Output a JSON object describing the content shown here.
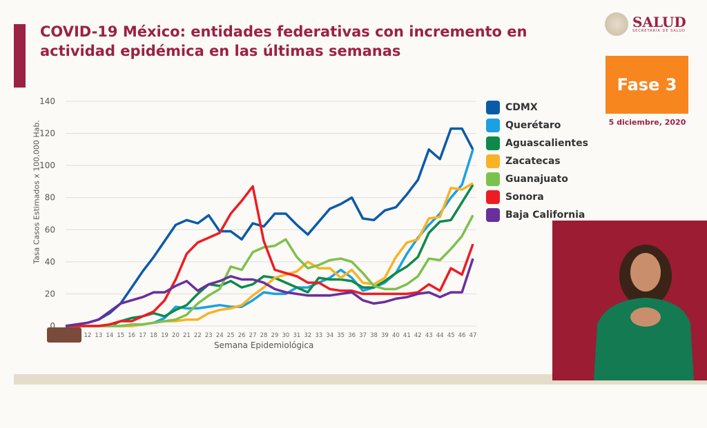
{
  "header": {
    "title": "COVID-19 México: entidades federativas con incremento en actividad epidémica en las últimas semanas",
    "logo_text": "SALUD",
    "logo_sub": "SECRETARÍA DE SALUD",
    "phase": "Fase 3",
    "date": "5 diciembre, 2020"
  },
  "chart_data": {
    "type": "line",
    "title": "",
    "xlabel": "Semana Epidemiológica",
    "ylabel": "Tasa Casos Estimados x 100,000 Hab.",
    "ylim": [
      0,
      140
    ],
    "yticks": [
      "0",
      "20",
      "40",
      "60",
      "80",
      "100",
      "120",
      "140"
    ],
    "grid": true,
    "legend": "right",
    "x": [
      10,
      11,
      12,
      13,
      14,
      15,
      16,
      17,
      18,
      19,
      20,
      21,
      22,
      23,
      24,
      25,
      26,
      27,
      28,
      29,
      30,
      31,
      32,
      33,
      34,
      35,
      36,
      37,
      38,
      39,
      40,
      41,
      42,
      43,
      44,
      45,
      46,
      47
    ],
    "xtick_labels": [
      "12",
      "13",
      "14",
      "15",
      "16",
      "17",
      "18",
      "19",
      "20",
      "21",
      "22",
      "23",
      "24",
      "25",
      "26",
      "27",
      "28",
      "29",
      "30",
      "31",
      "32",
      "33",
      "34",
      "35",
      "36",
      "37",
      "38",
      "39",
      "40",
      "41",
      "42",
      "43",
      "44",
      "45",
      "46",
      "47"
    ],
    "series": [
      {
        "name": "CDMX",
        "color": "#0b5aa8",
        "values": [
          0,
          1,
          2,
          4,
          8,
          14,
          24,
          34,
          43,
          53,
          63,
          66,
          64,
          69,
          59,
          59,
          54,
          64,
          62,
          70,
          70,
          63,
          57,
          65,
          73,
          76,
          80,
          67,
          66,
          72,
          74,
          82,
          91,
          110,
          104,
          123,
          123,
          110
        ]
      },
      {
        "name": "Querétaro",
        "color": "#1ba1e2",
        "values": [
          0,
          0,
          0,
          0,
          0,
          0,
          0,
          1,
          2,
          5,
          12,
          11,
          11,
          12,
          13,
          12,
          12,
          16,
          21,
          20,
          20,
          24,
          24,
          27,
          30,
          35,
          30,
          22,
          24,
          27,
          33,
          45,
          55,
          63,
          70,
          80,
          88,
          110
        ]
      },
      {
        "name": "Aguascalientes",
        "color": "#0d8a4a",
        "values": [
          0,
          0,
          0,
          0,
          0,
          3,
          5,
          6,
          8,
          6,
          10,
          13,
          20,
          26,
          25,
          28,
          24,
          26,
          31,
          30,
          27,
          24,
          21,
          30,
          29,
          29,
          28,
          24,
          24,
          28,
          33,
          37,
          43,
          58,
          65,
          66,
          77,
          88
        ]
      },
      {
        "name": "Zacatecas",
        "color": "#f9b224",
        "values": [
          0,
          0,
          0,
          0,
          0,
          0,
          0,
          1,
          2,
          3,
          3,
          4,
          4,
          8,
          10,
          11,
          13,
          19,
          24,
          30,
          32,
          34,
          40,
          36,
          36,
          30,
          35,
          27,
          26,
          30,
          43,
          52,
          54,
          67,
          68,
          86,
          85,
          89
        ]
      },
      {
        "name": "Guanajuato",
        "color": "#7dc14d",
        "values": [
          0,
          0,
          0,
          0,
          0,
          0,
          1,
          1,
          2,
          3,
          4,
          7,
          14,
          19,
          23,
          37,
          35,
          46,
          49,
          50,
          54,
          43,
          36,
          38,
          41,
          42,
          40,
          33,
          25,
          23,
          23,
          26,
          31,
          42,
          41,
          48,
          56,
          69
        ]
      },
      {
        "name": "Sonora",
        "color": "#ed1c24",
        "values": [
          0,
          0,
          0,
          0,
          1,
          3,
          3,
          6,
          9,
          16,
          29,
          45,
          52,
          55,
          58,
          70,
          78,
          87,
          53,
          35,
          33,
          31,
          27,
          27,
          23,
          22,
          22,
          20,
          20,
          20,
          20,
          20,
          21,
          26,
          22,
          36,
          32,
          51
        ]
      },
      {
        "name": "Baja California",
        "color": "#6a2f9c",
        "values": [
          0,
          1,
          2,
          4,
          9,
          14,
          16,
          18,
          21,
          21,
          25,
          28,
          22,
          26,
          28,
          31,
          29,
          29,
          27,
          23,
          21,
          20,
          19,
          19,
          19,
          20,
          21,
          16,
          14,
          15,
          17,
          18,
          20,
          21,
          18,
          21,
          21,
          42
        ]
      }
    ]
  }
}
